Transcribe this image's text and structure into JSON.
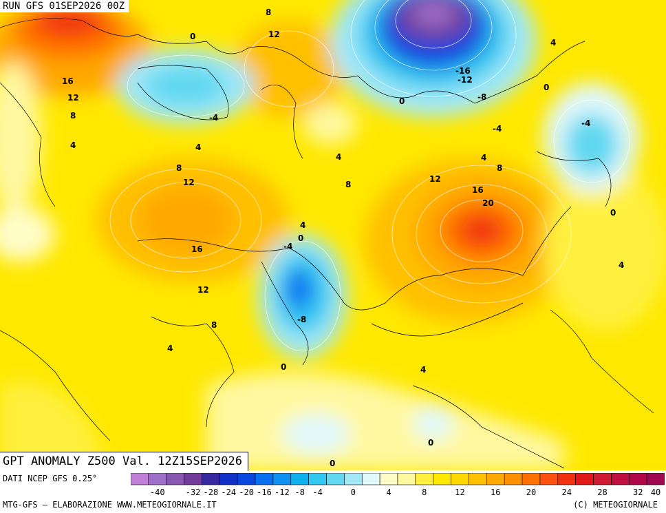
{
  "header": {
    "run_title": "RUN GFS 01SEP2026 00Z",
    "product_title": "GPT ANOMALY Z500 Val. 12Z15SEP2026"
  },
  "footer": {
    "source": "DATI NCEP GFS 0.25°",
    "credit_left": "MTG-GFS — ELABORAZIONE WWW.METEOGIORNALE.IT",
    "credit_right": "(C) METEOGIORNALE"
  },
  "legend": {
    "tick_labels": [
      "-40",
      "-32",
      "-28",
      "-24",
      "-20",
      "-16",
      "-12",
      "-8",
      "-4",
      "0",
      "4",
      "8",
      "12",
      "16",
      "20",
      "24",
      "28",
      "32",
      "40"
    ],
    "colors": [
      "#c080d8",
      "#a070c8",
      "#8858b0",
      "#703c98",
      "#3828a0",
      "#1030c8",
      "#0848e0",
      "#0870f0",
      "#1090f0",
      "#10b0f0",
      "#30c8f0",
      "#60d8f0",
      "#a0e8f8",
      "#e0f8fc",
      "#fffcc8",
      "#fff8a0",
      "#fff040",
      "#ffe800",
      "#ffd800",
      "#ffc000",
      "#ffa800",
      "#ff9000",
      "#ff7000",
      "#ff5010",
      "#f03010",
      "#e01818",
      "#d01830",
      "#c01040",
      "#b00848",
      "#a00850"
    ]
  },
  "map": {
    "contour_labels": [
      "8",
      "12",
      "0",
      "16",
      "12",
      "8",
      "4",
      "-4",
      "4",
      "8",
      "12",
      "16",
      "12",
      "8",
      "4",
      "-4",
      "0",
      "4",
      "-8",
      "0",
      "4",
      "-16",
      "-12",
      "0",
      "-8",
      "-4",
      "4",
      "0",
      "-4",
      "4",
      "8",
      "12",
      "16",
      "20",
      "8",
      "0",
      "4",
      "4",
      "0",
      "0"
    ]
  }
}
